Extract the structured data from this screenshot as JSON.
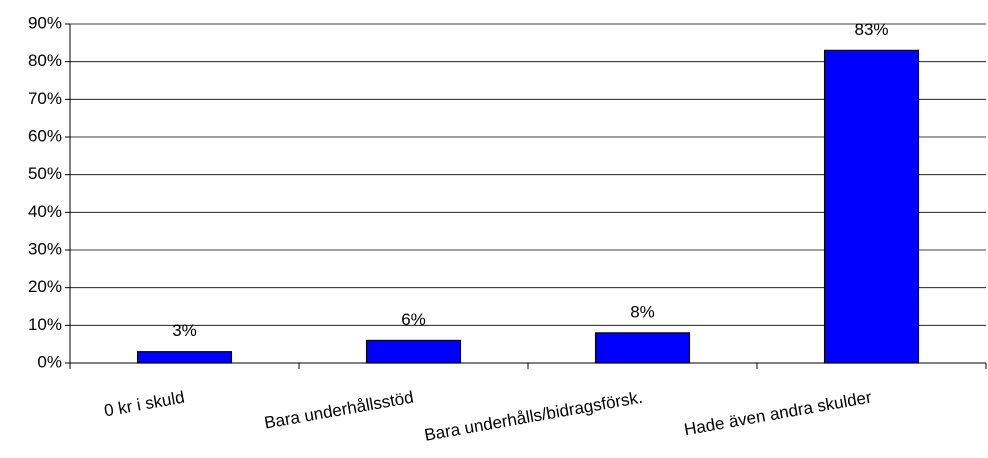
{
  "chart_data": {
    "type": "bar",
    "categories": [
      "0 kr i skuld",
      "Bara underhållsstöd",
      "Bara underhålls/bidragsförsk.",
      "Hade även andra skulder"
    ],
    "values": [
      3,
      6,
      8,
      83
    ],
    "value_labels": [
      "3%",
      "6%",
      "8%",
      "83%"
    ],
    "color": "#0000ff",
    "ylim": [
      0,
      90
    ],
    "yticks": [
      {
        "value": 0,
        "label": "0%"
      },
      {
        "value": 10,
        "label": "10%"
      },
      {
        "value": 20,
        "label": "20%"
      },
      {
        "value": 30,
        "label": "30%"
      },
      {
        "value": 40,
        "label": "40%"
      },
      {
        "value": 50,
        "label": "50%"
      },
      {
        "value": 60,
        "label": "60%"
      },
      {
        "value": 70,
        "label": "70%"
      },
      {
        "value": 80,
        "label": "80%"
      },
      {
        "value": 90,
        "label": "90%"
      }
    ],
    "grid": true
  }
}
